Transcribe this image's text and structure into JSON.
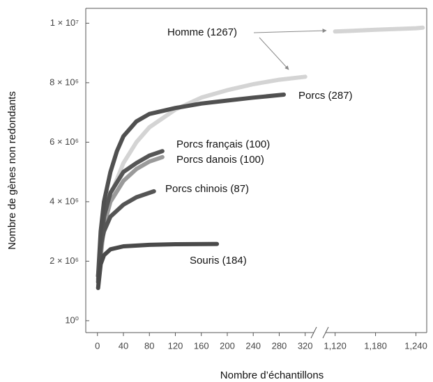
{
  "chart_data": {
    "type": "line",
    "xlabel": "Nombre d’échantillons",
    "ylabel": "Nombre de gènes non redondants",
    "x_segments": [
      {
        "xlim": [
          -18,
          330
        ],
        "xticks": [
          0,
          40,
          80,
          120,
          160,
          200,
          240,
          280,
          320
        ]
      },
      {
        "xlim": [
          1109,
          1256
        ],
        "xticks": [
          {
            "value": 1120,
            "label": "1,120"
          },
          {
            "value": 1180,
            "label": "1,180"
          },
          {
            "value": 1240,
            "label": "1,240"
          }
        ]
      }
    ],
    "ylim": [
      -400000,
      10500000
    ],
    "yticks": [
      {
        "value": 1,
        "label": "10⁰"
      },
      {
        "value": 2000000,
        "label": "2 × 10⁶"
      },
      {
        "value": 4000000,
        "label": "4 × 10⁶"
      },
      {
        "value": 6000000,
        "label": "6 × 10⁶"
      },
      {
        "value": 8000000,
        "label": "8 × 10⁶"
      },
      {
        "value": 10000000,
        "label": "1 × 10⁷"
      }
    ],
    "series": [
      {
        "name": "Homme (1267)",
        "color": "#d4d4d4",
        "x": [
          1,
          10,
          20,
          40,
          60,
          80,
          120,
          160,
          200,
          240,
          280,
          320,
          1120,
          1180,
          1240,
          1250
        ],
        "values": [
          1200000,
          3200000,
          4200000,
          5300000,
          6000000,
          6500000,
          7100000,
          7500000,
          7750000,
          7950000,
          8100000,
          8200000,
          9720000,
          9780000,
          9830000,
          9850000
        ]
      },
      {
        "name": "Porcs danois (100)",
        "color": "#9a9a9a",
        "x": [
          1,
          10,
          20,
          40,
          60,
          80,
          100
        ],
        "values": [
          1400000,
          3200000,
          4000000,
          4700000,
          5100000,
          5350000,
          5500000
        ]
      },
      {
        "name": "Porcs français (100)",
        "color": "#555555",
        "x": [
          1,
          10,
          20,
          40,
          60,
          80,
          100
        ],
        "values": [
          1500000,
          3500000,
          4300000,
          5000000,
          5300000,
          5550000,
          5700000
        ]
      },
      {
        "name": "Porcs chinois (87)",
        "color": "#555555",
        "x": [
          1,
          5,
          10,
          20,
          40,
          60,
          87
        ],
        "values": [
          1300000,
          2500000,
          3000000,
          3500000,
          3900000,
          4150000,
          4350000
        ]
      },
      {
        "name": "Porcs (287)",
        "color": "#505050",
        "x": [
          1,
          5,
          10,
          20,
          30,
          40,
          60,
          80,
          120,
          160,
          200,
          240,
          287
        ],
        "values": [
          1500000,
          3000000,
          4000000,
          5000000,
          5700000,
          6200000,
          6700000,
          6950000,
          7150000,
          7300000,
          7400000,
          7500000,
          7600000
        ]
      },
      {
        "name": "Souris (184)",
        "color": "#4a4a4a",
        "x": [
          1,
          5,
          10,
          20,
          40,
          80,
          120,
          184
        ],
        "values": [
          1100000,
          1900000,
          2200000,
          2400000,
          2500000,
          2550000,
          2570000,
          2580000
        ]
      }
    ]
  }
}
